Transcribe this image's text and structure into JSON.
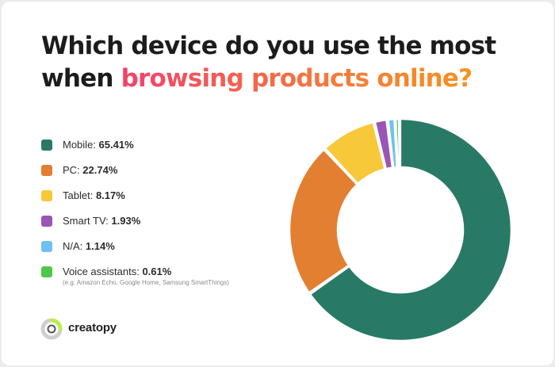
{
  "title": {
    "line1": "Which device do you use the most",
    "line2_prefix": "when ",
    "line2_highlight": "browsing products online?"
  },
  "colors": {
    "mobile": "#287a66",
    "pc": "#e37f31",
    "tablet": "#f8c83b",
    "smart_tv": "#9a55b5",
    "na": "#6ec1f2",
    "voice": "#4cc84a"
  },
  "legend": [
    {
      "label": "Mobile:",
      "value": "65.41%"
    },
    {
      "label": "PC:",
      "value": "22.74%"
    },
    {
      "label": "Tablet:",
      "value": "8.17%"
    },
    {
      "label": "Smart TV:",
      "value": "1.93%"
    },
    {
      "label": "N/A:",
      "value": "1.14%"
    },
    {
      "label": "Voice assistants:",
      "value": "0.61%",
      "note": "(e.g. Amazon Echo, Google Home, Samsung SmartThings)"
    }
  ],
  "logo": {
    "text": "creatopy",
    "icon": "creatopy-logo-icon"
  },
  "chart_data": {
    "type": "pie",
    "categories": [
      "Mobile",
      "PC",
      "Tablet",
      "Smart TV",
      "N/A",
      "Voice assistants"
    ],
    "values": [
      65.41,
      22.74,
      8.17,
      1.93,
      1.14,
      0.61
    ]
  }
}
